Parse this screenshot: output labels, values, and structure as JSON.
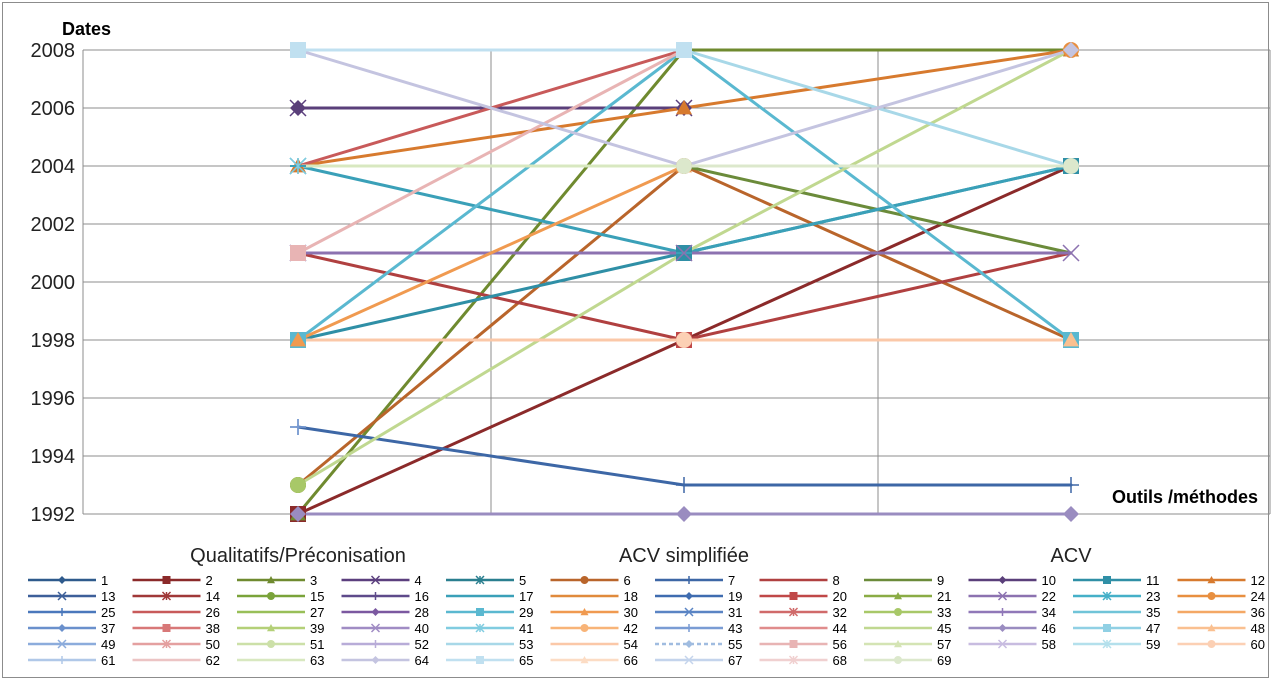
{
  "chart_data": {
    "type": "line",
    "ylabel": "Dates",
    "xlabel": "Outils /méthodes",
    "categories": [
      "Qualitatifs/Préconisation",
      "ACV simplifiée",
      "ACV"
    ],
    "ylim": [
      1992,
      2008
    ],
    "yticks": [
      1992,
      1994,
      1996,
      1998,
      2000,
      2002,
      2004,
      2006,
      2008
    ],
    "grid": true,
    "legend_position": "bottom",
    "series": [
      {
        "name": "1",
        "values": [
          null,
          null,
          null
        ],
        "color": "#2e5a8c",
        "marker": "diamond"
      },
      {
        "name": "2",
        "values": [
          1992,
          1998,
          2004
        ],
        "color": "#8b2a2a",
        "marker": "square"
      },
      {
        "name": "3",
        "values": [
          1992,
          2008,
          2008
        ],
        "color": "#6f8a2f",
        "marker": "triangle"
      },
      {
        "name": "4",
        "values": [
          2006,
          2006,
          null
        ],
        "color": "#5b3f7e",
        "marker": "x"
      },
      {
        "name": "5",
        "values": [
          null,
          null,
          null
        ],
        "color": "#2a7f8f",
        "marker": "star"
      },
      {
        "name": "6",
        "values": [
          1993,
          2004,
          1998
        ],
        "color": "#b9652b",
        "marker": "circle"
      },
      {
        "name": "7",
        "values": [
          1995,
          1993,
          1993
        ],
        "color": "#3d67a6",
        "marker": "plus"
      },
      {
        "name": "8",
        "values": [
          2001,
          1998,
          2001
        ],
        "color": "#b04040",
        "marker": "none"
      },
      {
        "name": "9",
        "values": [
          2004,
          2004,
          2001
        ],
        "color": "#6b8b3a",
        "marker": "none"
      },
      {
        "name": "10",
        "values": [
          2006,
          2006,
          null
        ],
        "color": "#5a3f7a",
        "marker": "diamond"
      },
      {
        "name": "11",
        "values": [
          1998,
          2001,
          2004
        ],
        "color": "#2f8fa6",
        "marker": "square"
      },
      {
        "name": "12",
        "values": [
          2004,
          2006,
          2008
        ],
        "color": "#d77a2e",
        "marker": "triangle"
      },
      {
        "name": "13",
        "values": [
          null,
          null,
          null
        ],
        "color": "#3d5f99",
        "marker": "x"
      },
      {
        "name": "14",
        "values": [
          null,
          null,
          null
        ],
        "color": "#a03838",
        "marker": "star"
      },
      {
        "name": "15",
        "values": [
          1993,
          null,
          null
        ],
        "color": "#7aa33a",
        "marker": "circle"
      },
      {
        "name": "16",
        "values": [
          null,
          null,
          null
        ],
        "color": "#5e4a8a",
        "marker": "plus"
      },
      {
        "name": "17",
        "values": [
          2004,
          2001,
          2004
        ],
        "color": "#3aa0b8",
        "marker": "dash"
      },
      {
        "name": "18",
        "values": [
          null,
          null,
          null
        ],
        "color": "#e08a3c",
        "marker": "dash"
      },
      {
        "name": "19",
        "values": [
          null,
          null,
          null
        ],
        "color": "#3f6cb0",
        "marker": "diamond"
      },
      {
        "name": "20",
        "values": [
          null,
          1998,
          null
        ],
        "color": "#c04848",
        "marker": "square"
      },
      {
        "name": "21",
        "values": [
          null,
          null,
          null
        ],
        "color": "#8aac45",
        "marker": "triangle"
      },
      {
        "name": "22",
        "values": [
          2001,
          2001,
          2001
        ],
        "color": "#8c72b0",
        "marker": "x"
      },
      {
        "name": "23",
        "values": [
          2004,
          null,
          null
        ],
        "color": "#45b0c8",
        "marker": "star"
      },
      {
        "name": "24",
        "values": [
          null,
          null,
          2008
        ],
        "color": "#e88f40",
        "marker": "circle"
      },
      {
        "name": "25",
        "values": [
          null,
          null,
          null
        ],
        "color": "#4a78bc",
        "marker": "plus"
      },
      {
        "name": "26",
        "values": [
          2004,
          2008,
          null
        ],
        "color": "#c85a5a",
        "marker": "none"
      },
      {
        "name": "27",
        "values": [
          null,
          null,
          null
        ],
        "color": "#98bf58",
        "marker": "none"
      },
      {
        "name": "28",
        "values": [
          1998,
          null,
          null
        ],
        "color": "#7b58a0",
        "marker": "diamond"
      },
      {
        "name": "29",
        "values": [
          1998,
          2008,
          1998
        ],
        "color": "#5ab8d0",
        "marker": "square"
      },
      {
        "name": "30",
        "values": [
          1998,
          2004,
          null
        ],
        "color": "#f09a50",
        "marker": "triangle"
      },
      {
        "name": "31",
        "values": [
          null,
          null,
          null
        ],
        "color": "#5a84c4",
        "marker": "x"
      },
      {
        "name": "32",
        "values": [
          null,
          null,
          null
        ],
        "color": "#d06a6a",
        "marker": "star"
      },
      {
        "name": "33",
        "values": [
          1993,
          null,
          null
        ],
        "color": "#a8c868",
        "marker": "circle"
      },
      {
        "name": "34",
        "values": [
          null,
          null,
          null
        ],
        "color": "#9078b8",
        "marker": "plus"
      },
      {
        "name": "35",
        "values": [
          null,
          null,
          null
        ],
        "color": "#70c4d8",
        "marker": "none"
      },
      {
        "name": "36",
        "values": [
          null,
          null,
          null
        ],
        "color": "#f4a865",
        "marker": "none"
      },
      {
        "name": "37",
        "values": [
          null,
          null,
          null
        ],
        "color": "#6a90cc",
        "marker": "diamond"
      },
      {
        "name": "38",
        "values": [
          2001,
          null,
          null
        ],
        "color": "#d87878",
        "marker": "square"
      },
      {
        "name": "39",
        "values": [
          null,
          null,
          null
        ],
        "color": "#b4d078",
        "marker": "triangle"
      },
      {
        "name": "40",
        "values": [
          null,
          null,
          null
        ],
        "color": "#a08cc4",
        "marker": "x"
      },
      {
        "name": "41",
        "values": [
          2004,
          null,
          null
        ],
        "color": "#80cce0",
        "marker": "star"
      },
      {
        "name": "42",
        "values": [
          null,
          null,
          null
        ],
        "color": "#f8b478",
        "marker": "circle"
      },
      {
        "name": "43",
        "values": [
          1995,
          null,
          null
        ],
        "color": "#7a9cd4",
        "marker": "plus"
      },
      {
        "name": "44",
        "values": [
          null,
          null,
          null
        ],
        "color": "#e08c8c",
        "marker": "none"
      },
      {
        "name": "45",
        "values": [
          1993,
          2001,
          2008
        ],
        "color": "#c0d890",
        "marker": "none"
      },
      {
        "name": "46",
        "values": [
          1992,
          1992,
          1992
        ],
        "color": "#9a8cc0",
        "marker": "diamond"
      },
      {
        "name": "47",
        "values": [
          null,
          null,
          null
        ],
        "color": "#90d0e4",
        "marker": "square"
      },
      {
        "name": "48",
        "values": [
          null,
          null,
          1998
        ],
        "color": "#fac090",
        "marker": "triangle"
      },
      {
        "name": "49",
        "values": [
          null,
          null,
          null
        ],
        "color": "#8cacdc",
        "marker": "x"
      },
      {
        "name": "50",
        "values": [
          null,
          null,
          null
        ],
        "color": "#e4a0a0",
        "marker": "star"
      },
      {
        "name": "51",
        "values": [
          null,
          null,
          null
        ],
        "color": "#cce0a8",
        "marker": "circle"
      },
      {
        "name": "52",
        "values": [
          null,
          null,
          null
        ],
        "color": "#b8acd8",
        "marker": "plus"
      },
      {
        "name": "53",
        "values": [
          2008,
          2008,
          2004
        ],
        "color": "#a8d8e8",
        "marker": "none"
      },
      {
        "name": "54",
        "values": [
          1998,
          1998,
          1998
        ],
        "color": "#fbc8a8",
        "marker": "none"
      },
      {
        "name": "55",
        "values": [
          null,
          null,
          null
        ],
        "color": "#a0bce0",
        "marker": "diamond"
      },
      {
        "name": "56",
        "values": [
          2001,
          2008,
          null
        ],
        "color": "#e8b4b4",
        "marker": "square"
      },
      {
        "name": "57",
        "values": [
          null,
          null,
          null
        ],
        "color": "#d4e4b4",
        "marker": "triangle"
      },
      {
        "name": "58",
        "values": [
          null,
          null,
          null
        ],
        "color": "#c8bce0",
        "marker": "x"
      },
      {
        "name": "59",
        "values": [
          null,
          null,
          null
        ],
        "color": "#b4e0ec",
        "marker": "star"
      },
      {
        "name": "60",
        "values": [
          null,
          1998,
          null
        ],
        "color": "#fcd0b4",
        "marker": "circle"
      },
      {
        "name": "61",
        "values": [
          null,
          null,
          null
        ],
        "color": "#b0c8e8",
        "marker": "plus"
      },
      {
        "name": "62",
        "values": [
          null,
          null,
          null
        ],
        "color": "#ecc4c4",
        "marker": "none"
      },
      {
        "name": "63",
        "values": [
          2004,
          2004,
          2004
        ],
        "color": "#d8e8c0",
        "marker": "none"
      },
      {
        "name": "64",
        "values": [
          2008,
          2004,
          2008
        ],
        "color": "#c4c4e0",
        "marker": "diamond"
      },
      {
        "name": "65",
        "values": [
          2008,
          2008,
          null
        ],
        "color": "#c0e0f0",
        "marker": "square"
      },
      {
        "name": "66",
        "values": [
          null,
          null,
          null
        ],
        "color": "#fcdcc4",
        "marker": "triangle"
      },
      {
        "name": "67",
        "values": [
          null,
          null,
          null
        ],
        "color": "#c4d4ec",
        "marker": "x"
      },
      {
        "name": "68",
        "values": [
          null,
          null,
          null
        ],
        "color": "#f0d0d0",
        "marker": "star"
      },
      {
        "name": "69",
        "values": [
          null,
          2004,
          2004
        ],
        "color": "#dce8cc",
        "marker": "circle"
      }
    ]
  }
}
